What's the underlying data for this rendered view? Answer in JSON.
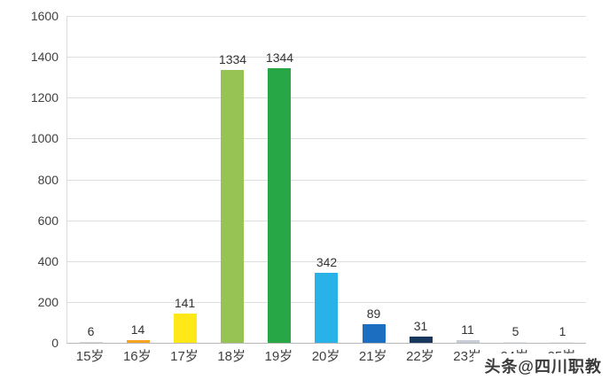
{
  "chart_data": {
    "type": "bar",
    "title": "",
    "xlabel": "",
    "ylabel": "",
    "categories": [
      "15岁",
      "16岁",
      "17岁",
      "18岁",
      "19岁",
      "20岁",
      "21岁",
      "22岁",
      "23岁",
      "24岁",
      "25岁"
    ],
    "values": [
      6,
      14,
      141,
      1334,
      1344,
      342,
      89,
      31,
      11,
      5,
      1
    ],
    "colors": [
      "#d9d9d9",
      "#f5a321",
      "#ffe818",
      "#97c254",
      "#27a746",
      "#29b2e8",
      "#1c6fc0",
      "#17375e",
      "#c6cdd4",
      "#e8eef5",
      "#f0f0f0"
    ],
    "ylim": [
      0,
      1600
    ],
    "yticks": [
      0,
      200,
      400,
      600,
      800,
      1000,
      1200,
      1400,
      1600
    ],
    "grid": true,
    "legend": "none"
  },
  "watermark": {
    "text": "头条@四川职教"
  }
}
